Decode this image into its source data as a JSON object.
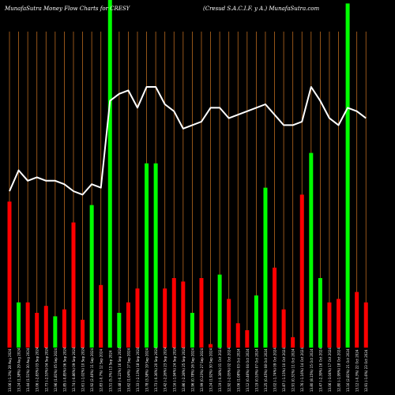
{
  "header": {
    "title_left": "MunafaSutra  Money Flow  Charts for CRESY",
    "title_right": "(Cresud S.A.C.I.F. y A.) MunafaSutra.com"
  },
  "colors": {
    "background": "#000000",
    "grid": "#b8691f",
    "up": "#00ff00",
    "down": "#ff0000",
    "line": "#ffffff",
    "text": "#ffffff"
  },
  "chart_data": {
    "type": "bar",
    "ylim": [
      0,
      100
    ],
    "categories": [
      "13.06 (-1.3%) 28 Aug 2024",
      "13.24 (1.38%) 29 Aug 2024",
      "13.44 (1.51%) 30 Aug 2024",
      "13.06 (-2.83%) 03 Sep 2024",
      "12.73 (-2.53%) 04 Sep 2024",
      "12.96 (1.81%) 05 Sep 2024",
      "12.85 (-0.85%) 06 Sep 2024",
      "12.74 (-0.86%) 09 Sep 2024",
      "12.61 (-1.02%) 10 Sep 2024",
      "12.92 (2.46%) 11 Sep 2024",
      "12.83 (-0.7%) 12 Sep 2024",
      "13.51 (5.3%) 13 Sep 2024",
      "13.48 (-0.22%) 16 Sep 2024",
      "13.62 (1.04%) 17 Sep 2024",
      "13.33 (-2.13%) 18 Sep 2024",
      "13.78 (3.38%) 19 Sep 2024",
      "13.73 (-0.36%) 20 Sep 2024",
      "13.42 (-2.26%) 23 Sep 2024",
      "13.16 (-1.94%) 24 Sep 2024",
      "12.86 (-2.28%) 25 Sep 2024",
      "12.96 (0.78%) 26 Sep 2024",
      "12.99 (0.23%) 27 Sep 2024",
      "13.24 (1.92%) 30 Sep 2024",
      "13.19 (-0.38%) 01 Oct 2024",
      "12.92 (-2.05%) 02 Oct 2024",
      "13.06 (1.08%) 03 Oct 2024",
      "13.12 (0.46%) 04 Oct 2024",
      "13.19 (0.53%) 07 Oct 2024",
      "13.25 (0.45%) 08 Oct 2024",
      "13.02 (-1.74%) 09 Oct 2024",
      "12.87 (-1.15%) 10 Oct 2024",
      "12.91 (0.31%) 11 Oct 2024",
      "12.76 (-1.16%) 14 Oct 2024",
      "13.80 (8.15%) 15 Oct 2024",
      "13.47 (-2.39%) 16 Oct 2024",
      "13.06 (-3.04%) 17 Oct 2024",
      "12.80 (-1.99%) 18 Oct 2024",
      "13.16 (2.81%) 21 Oct 2024",
      "13.12 (-0.3%) 22 Oct 2024",
      "12.91 (-1.6%) 23 Oct 2024"
    ],
    "values": [
      42,
      13,
      13,
      10,
      12,
      9,
      11,
      36,
      8,
      41,
      18,
      100,
      10,
      13,
      17,
      53,
      53,
      17,
      20,
      19,
      10,
      20,
      1,
      21,
      14,
      7,
      5,
      15,
      46,
      23,
      11,
      3,
      44,
      56,
      20,
      13,
      14,
      99,
      16,
      13
    ],
    "direction": [
      "down",
      "up",
      "down",
      "down",
      "down",
      "up",
      "down",
      "down",
      "down",
      "up",
      "down",
      "up",
      "up",
      "down",
      "down",
      "up",
      "up",
      "down",
      "down",
      "down",
      "up",
      "down",
      "down",
      "up",
      "down",
      "down",
      "down",
      "up",
      "up",
      "down",
      "down",
      "down",
      "down",
      "up",
      "up",
      "down",
      "down",
      "up",
      "down",
      "down"
    ],
    "price_line": [
      13.06,
      13.24,
      13.44,
      13.06,
      12.73,
      12.96,
      12.85,
      12.74,
      12.61,
      12.92,
      12.83,
      13.51,
      13.48,
      13.62,
      13.33,
      13.78,
      13.73,
      13.42,
      13.16,
      12.86,
      12.96,
      12.99,
      13.24,
      13.19,
      12.92,
      13.06,
      13.12,
      13.19,
      13.25,
      13.02,
      12.87,
      12.91,
      12.76,
      13.8,
      13.47,
      13.06,
      12.8,
      13.16,
      13.12,
      12.91
    ],
    "line_series": [
      45,
      51,
      48,
      49,
      48,
      48,
      47,
      45,
      44,
      47,
      46,
      71,
      73,
      74,
      69,
      75,
      75,
      70,
      68,
      63,
      64,
      65,
      69,
      69,
      66,
      67,
      68,
      69,
      70,
      67,
      64,
      64,
      65,
      75,
      71,
      66,
      64,
      69,
      68,
      66
    ],
    "grid": true
  }
}
